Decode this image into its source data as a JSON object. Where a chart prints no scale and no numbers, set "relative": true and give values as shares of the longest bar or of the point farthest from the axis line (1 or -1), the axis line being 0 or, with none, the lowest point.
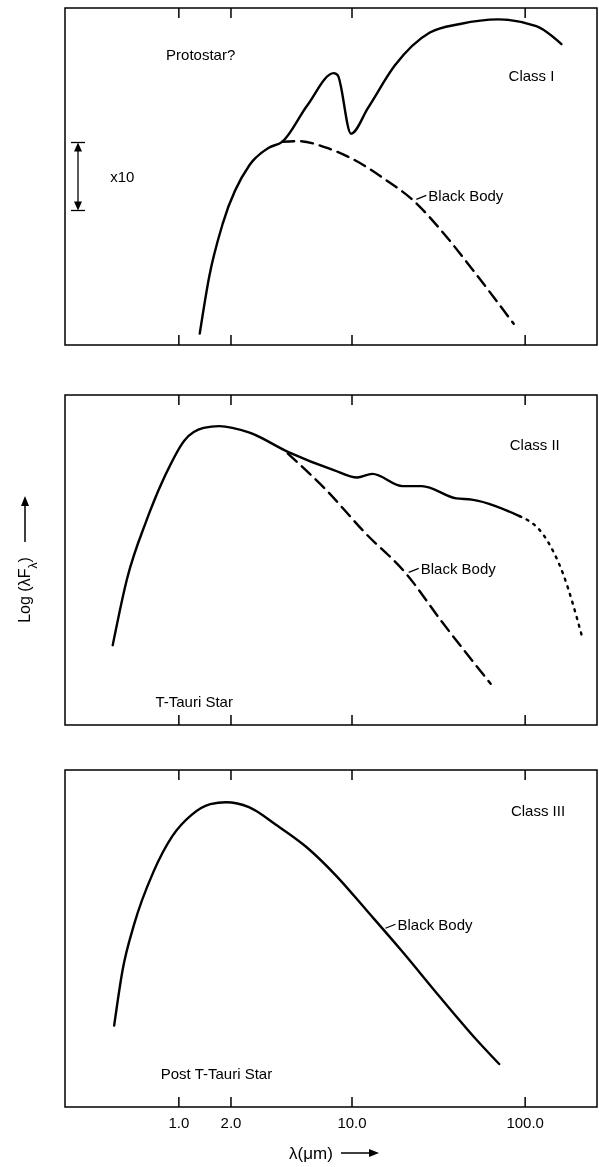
{
  "chart_data": [
    {
      "type": "line",
      "relative": true,
      "log": "x",
      "xlim": [
        0.22,
        260
      ],
      "xticks": [
        {
          "value": 1,
          "label": null
        },
        {
          "value": 2,
          "label": null
        },
        {
          "value": 10,
          "label": null
        },
        {
          "value": 100,
          "label": null
        }
      ],
      "tick_labels": false,
      "annotations": [
        "Protostar?",
        "Class I",
        "x10",
        {
          "text": "Black Body",
          "x": 22.9,
          "y": 0.441
        }
      ],
      "series": [
        {
          "color": "#000000",
          "line_style": "solid",
          "x": [
            1.32,
            1.5,
            1.8,
            2.56,
            3.31,
            3.95,
            5.5,
            7.85,
            8.26,
            9.87,
            12.4,
            17.7,
            28.0,
            42.1,
            70.0,
            116,
            162
          ],
          "values": [
            0.035,
            0.212,
            0.376,
            0.553,
            0.606,
            0.624,
            0.735,
            0.835,
            0.829,
            0.649,
            0.729,
            0.859,
            0.959,
            0.986,
            1.0,
            0.979,
            0.924
          ]
        },
        {
          "color": "#000000",
          "line_style": "dashed",
          "x": [
            3.95,
            4.97,
            7.1,
            10.1,
            15.2,
            22.9,
            32.6,
            49.1,
            85.9
          ],
          "values": [
            0.624,
            0.626,
            0.606,
            0.571,
            0.512,
            0.441,
            0.353,
            0.235,
            0.065
          ]
        }
      ]
    },
    {
      "type": "line",
      "relative": true,
      "log": "x",
      "xlim": [
        0.22,
        260
      ],
      "xticks": [
        {
          "value": 1,
          "label": null
        },
        {
          "value": 2,
          "label": null
        },
        {
          "value": 10,
          "label": null
        },
        {
          "value": 100,
          "label": null
        }
      ],
      "tick_labels": false,
      "ylabel": "Log (λF$_{λ}$)",
      "annotations": [
        "Class II",
        "T-Tauri Star",
        {
          "text": "Black Body",
          "x": 20.7,
          "y": 0.504
        }
      ],
      "series": [
        {
          "color": "#000000",
          "line_style": "solid",
          "x": [
            0.415,
            0.503,
            0.649,
            0.837,
            1.08,
            1.39,
            1.71,
            2.56,
            4.26,
            7.85,
            10.7,
            13.1,
            19.6,
            25.3,
            40.0,
            49.1,
            92.7
          ],
          "values": [
            0.267,
            0.491,
            0.683,
            0.837,
            0.953,
            0.994,
            1.0,
            0.978,
            0.914,
            0.853,
            0.828,
            0.84,
            0.799,
            0.799,
            0.758,
            0.754,
            0.699
          ]
        },
        {
          "color": "#000000",
          "line_style": "dotted",
          "x": [
            92.7,
            129,
            166,
            214
          ],
          "values": [
            0.699,
            0.632,
            0.504,
            0.292
          ]
        },
        {
          "color": "#000000",
          "line_style": "dashed",
          "x": [
            4.26,
            7.1,
            11.8,
            20.7,
            32.6,
            63.2
          ],
          "values": [
            0.908,
            0.786,
            0.645,
            0.504,
            0.35,
            0.138
          ]
        }
      ]
    },
    {
      "type": "line",
      "relative": true,
      "log": "x",
      "xlim": [
        0.22,
        260
      ],
      "xticks": [
        {
          "value": 1,
          "label": "1.0"
        },
        {
          "value": 2,
          "label": "2.0"
        },
        {
          "value": 10,
          "label": "10.0"
        },
        {
          "value": 100,
          "label": "100.0"
        }
      ],
      "tick_labels": "x",
      "xlabel": "λ(μm)",
      "annotations": [
        "Class III",
        "Post T-Tauri Star",
        {
          "text": "Black Body",
          "x": 15.2,
          "y": 0.58
        }
      ],
      "series": [
        {
          "color": "#000000",
          "line_style": "solid",
          "x": [
            0.423,
            0.473,
            0.552,
            0.711,
            0.917,
            1.18,
            1.52,
            1.87,
            2.54,
            3.62,
            5.43,
            8.16,
            12.2,
            19.4,
            32.2,
            50.8,
            70.8
          ],
          "values": [
            0.267,
            0.449,
            0.6,
            0.77,
            0.889,
            0.958,
            0.994,
            1.0,
            0.984,
            0.927,
            0.854,
            0.757,
            0.644,
            0.512,
            0.361,
            0.229,
            0.141
          ]
        }
      ]
    }
  ]
}
